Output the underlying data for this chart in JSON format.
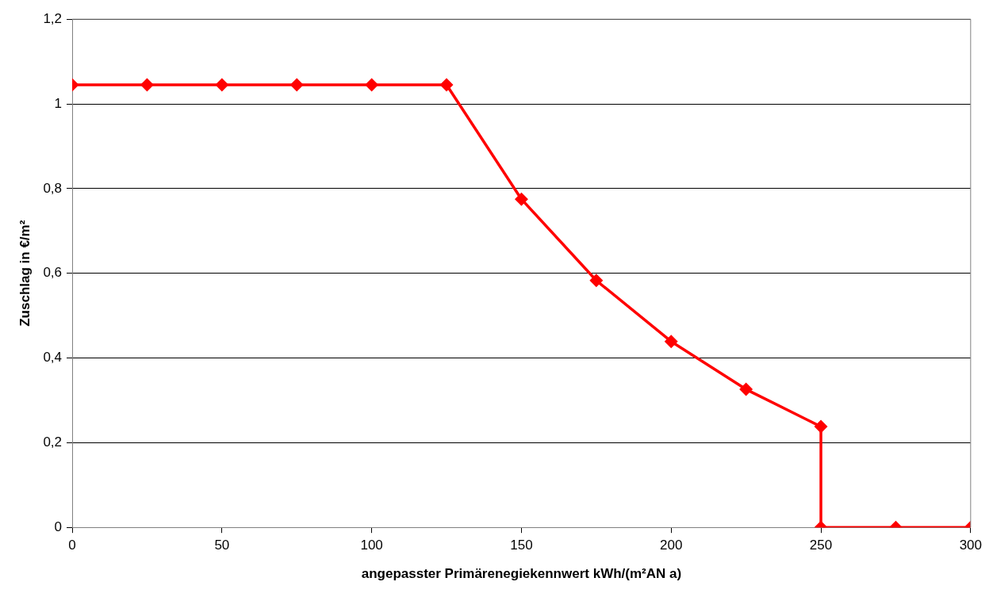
{
  "chart_data": {
    "type": "line",
    "xlabel": "angepasster Primärenegiekennwert kWh/(m²AN a)",
    "ylabel": "Zuschlag in €/m²",
    "x": [
      0,
      25,
      50,
      75,
      100,
      125,
      150,
      175,
      200,
      225,
      250,
      250,
      275,
      300
    ],
    "series": [
      {
        "color": "#ff0000",
        "values": [
          1.045,
          1.045,
          1.045,
          1.045,
          1.045,
          1.045,
          0.775,
          0.583,
          0.439,
          0.326,
          0.238,
          0,
          0,
          0
        ]
      }
    ],
    "xlim": [
      0,
      300
    ],
    "xticks": [
      0,
      50,
      100,
      150,
      200,
      250,
      300
    ],
    "ylim": [
      0,
      1.2
    ],
    "yticks": [
      0,
      {
        "value": 0.2,
        "label": "0,2"
      },
      {
        "value": 0.4,
        "label": "0,4"
      },
      {
        "value": 0.6,
        "label": "0,6"
      },
      {
        "value": 0.8,
        "label": "0,8"
      },
      1,
      {
        "value": 1.2,
        "label": "1,2"
      }
    ],
    "grid": "y",
    "legend": false,
    "marker": "diamond",
    "line_style": "solid"
  }
}
